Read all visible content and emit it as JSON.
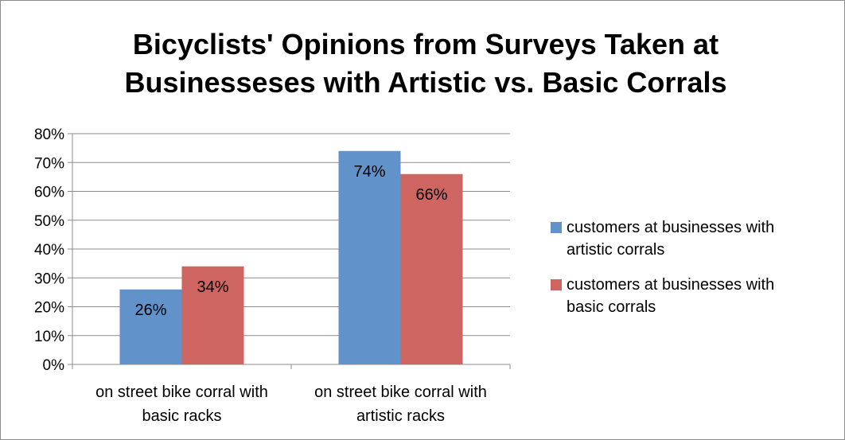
{
  "chart_data": {
    "type": "bar",
    "title_lines": [
      "Bicyclists' Opinions from Surveys Taken at",
      "Businesseses with Artistic vs. Basic Corrals"
    ],
    "categories": [
      [
        "on street bike corral with",
        "basic racks"
      ],
      [
        "on street bike corral with",
        "artistic racks"
      ]
    ],
    "series": [
      {
        "name": "customers at businesses with artistic corrals",
        "name_lines": [
          "customers at businesses with",
          "artistic corrals"
        ],
        "values": [
          26,
          74
        ],
        "labels": [
          "26%",
          "74%"
        ],
        "color": "#6192c9"
      },
      {
        "name": "customers at businesses with basic corrals",
        "name_lines": [
          "customers at businesses with",
          "basic corrals"
        ],
        "values": [
          34,
          66
        ],
        "labels": [
          "34%",
          "66%"
        ],
        "color": "#cf6561"
      }
    ],
    "ylim": [
      0,
      80
    ],
    "yticks": [
      "0%",
      "10%",
      "20%",
      "30%",
      "40%",
      "50%",
      "60%",
      "70%",
      "80%"
    ],
    "grid": true,
    "legend_position": "right"
  }
}
